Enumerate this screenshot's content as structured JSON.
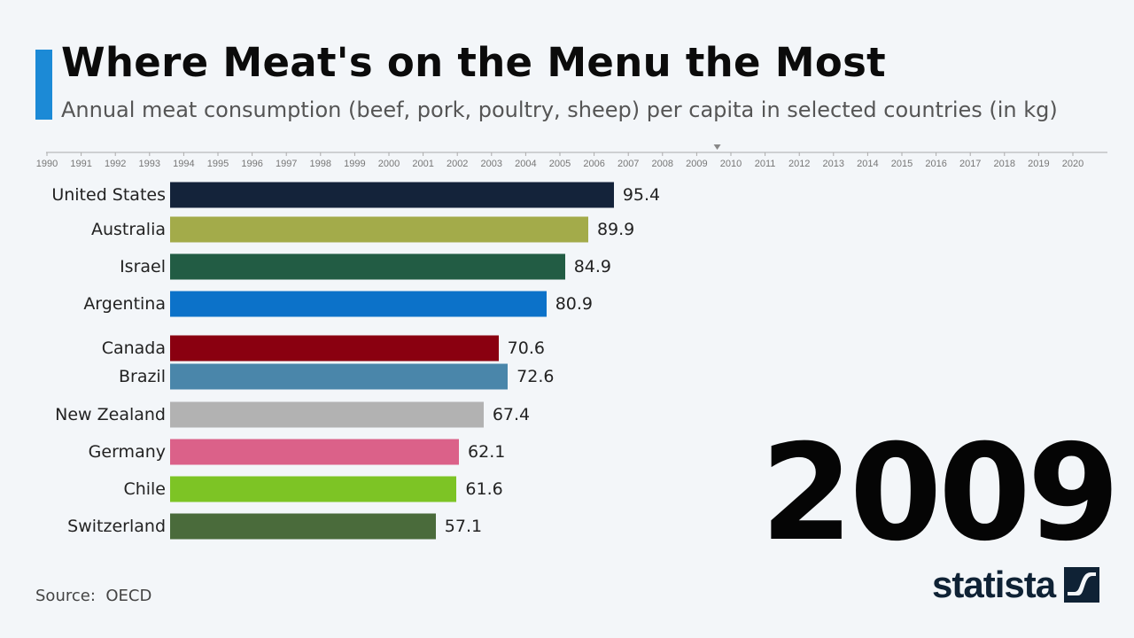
{
  "chart_data": {
    "type": "bar",
    "orientation": "horizontal",
    "title": "Where Meat's on the Menu the Most",
    "subtitle": "Annual meat consumption (beef, pork, poultry, sheep) per capita in selected countries (in kg)",
    "current_year": "2009",
    "timeline": {
      "years": [
        "1990",
        "1991",
        "1992",
        "1993",
        "1994",
        "1995",
        "1996",
        "1997",
        "1998",
        "1999",
        "2000",
        "2001",
        "2002",
        "2003",
        "2004",
        "2005",
        "2006",
        "2007",
        "2008",
        "2009",
        "2010",
        "2011",
        "2012",
        "2013",
        "2014",
        "2015",
        "2016",
        "2017",
        "2018",
        "2019",
        "2020"
      ],
      "marker_position": 2009.6
    },
    "categories": [
      "United States",
      "Australia",
      "Israel",
      "Argentina",
      "Canada",
      "Brazil",
      "New Zealand",
      "Germany",
      "Chile",
      "Switzerland"
    ],
    "values": [
      95.4,
      89.9,
      84.9,
      80.9,
      70.6,
      72.6,
      67.4,
      62.1,
      61.6,
      57.1
    ],
    "value_labels": [
      "95.4",
      "89.9",
      "84.9",
      "80.9",
      "70.6",
      "72.6",
      "67.4",
      "62.1",
      "61.6",
      "57.1"
    ],
    "colors": [
      "#14233a",
      "#a3ab4a",
      "#225c44",
      "#0c72c9",
      "#8a0010",
      "#4a86aa",
      "#b2b2b2",
      "#db6189",
      "#7dc425",
      "#4a6b3b"
    ],
    "xlim": [
      0,
      100
    ],
    "grid": false,
    "legend": "none"
  },
  "source_label": "Source:",
  "source": "OECD",
  "brand": "statista",
  "accent_color": "#1c8ad6"
}
